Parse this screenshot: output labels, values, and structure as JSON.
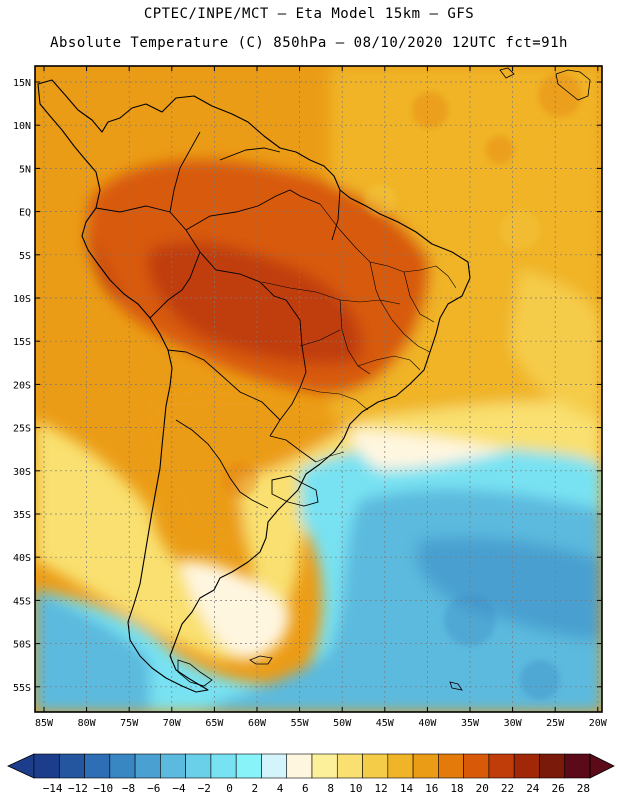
{
  "header": {
    "line1": "CPTEC/INPE/MCT –  Eta Model 15km – GFS",
    "line2": "Absolute Temperature (C) 850hPa – 08/10/2020 12UTC fct=91h"
  },
  "map": {
    "lat_labels": [
      "15N",
      "10N",
      "5N",
      "EQ",
      "5S",
      "10S",
      "15S",
      "20S",
      "25S",
      "30S",
      "35S",
      "40S",
      "45S",
      "50S",
      "55S"
    ],
    "lon_labels": [
      "85W",
      "80W",
      "75W",
      "70W",
      "65W",
      "60W",
      "55W",
      "50W",
      "45W",
      "40W",
      "35W",
      "30W",
      "25W",
      "20W"
    ],
    "region": "South America"
  },
  "colorbar": {
    "labels": [
      "-14",
      "-12",
      "-10",
      "-8",
      "-6",
      "-4",
      "-2",
      "0",
      "2",
      "4",
      "6",
      "8",
      "10",
      "12",
      "14",
      "16",
      "18",
      "20",
      "22",
      "24",
      "26",
      "28"
    ],
    "colors": [
      "#1c3c8c",
      "#2456a0",
      "#2e6eb4",
      "#3886c2",
      "#4aa0d0",
      "#5cbade",
      "#6acfe8",
      "#78e2f2",
      "#88f4fa",
      "#d2f4fa",
      "#fff6e0",
      "#fdf09a",
      "#f9e070",
      "#f5cc48",
      "#f0b428",
      "#eb9c16",
      "#e47a0a",
      "#d85a08",
      "#c03c08",
      "#a02808",
      "#7a1a0a",
      "#5a0a18"
    ],
    "units": "C"
  }
}
